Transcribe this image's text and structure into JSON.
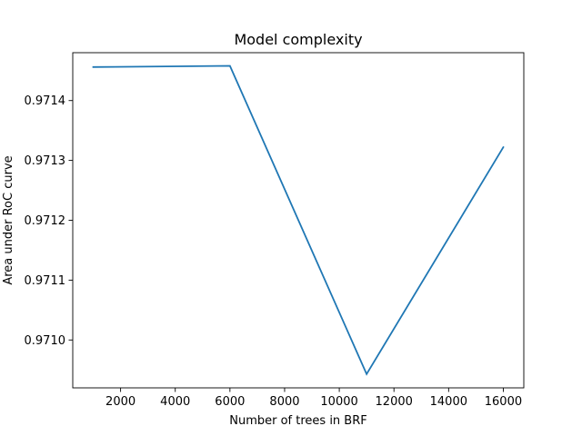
{
  "chart_data": {
    "type": "line",
    "title": "Model complexity",
    "xlabel": "Number of trees in BRF",
    "ylabel": "Area under RoC curve",
    "xlim": [
      250,
      16750
    ],
    "ylim": [
      0.97092,
      0.97148
    ],
    "xticks": [
      2000,
      4000,
      6000,
      8000,
      10000,
      12000,
      14000,
      16000
    ],
    "xtick_labels": [
      "2000",
      "4000",
      "6000",
      "8000",
      "10000",
      "12000",
      "14000",
      "16000"
    ],
    "yticks": [
      0.971,
      0.9711,
      0.9712,
      0.9713,
      0.9714
    ],
    "ytick_labels": [
      "0.9710",
      "0.9711",
      "0.9712",
      "0.9713",
      "0.9714"
    ],
    "grid": false,
    "series": [
      {
        "color": "#1f77b4",
        "x": [
          1000,
          6000,
          11000,
          16000
        ],
        "y": [
          0.971456,
          0.971458,
          0.970943,
          0.971322
        ]
      }
    ]
  }
}
